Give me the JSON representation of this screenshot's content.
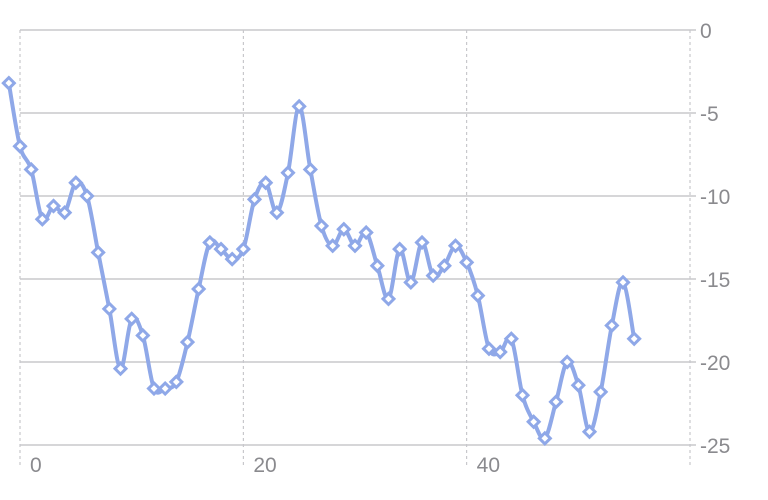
{
  "chart_data": {
    "type": "line",
    "title": "",
    "xlabel": "",
    "ylabel": "",
    "xlim": [
      0,
      60
    ],
    "ylim": [
      -25,
      0
    ],
    "x_ticks": [
      {
        "value": 0,
        "label": "0"
      },
      {
        "value": 20,
        "label": "20"
      },
      {
        "value": 40,
        "label": "40"
      }
    ],
    "y_ticks": [
      {
        "value": 0,
        "label": "0"
      },
      {
        "value": -5,
        "label": "-5"
      },
      {
        "value": -10,
        "label": "-10"
      },
      {
        "value": -15,
        "label": "-15"
      },
      {
        "value": -20,
        "label": "-20"
      },
      {
        "value": -25,
        "label": "-25"
      }
    ],
    "y_axis_position": "right",
    "grid": true,
    "colors": {
      "series": "#8fa8e8",
      "grid": "#c8c8cc",
      "tick_text": "#8a8a8e"
    },
    "series": [
      {
        "marker": "diamond",
        "x": [
          -1,
          0,
          1,
          2,
          3,
          4,
          5,
          6,
          7,
          8,
          9,
          10,
          11,
          12,
          13,
          14,
          15,
          16,
          17,
          18,
          19,
          20,
          21,
          22,
          23,
          24,
          25,
          26,
          27,
          28,
          29,
          30,
          31,
          32,
          33,
          34,
          35,
          36,
          37,
          38,
          39,
          40,
          41,
          42,
          43,
          44,
          45,
          46,
          47,
          48,
          49,
          50,
          51,
          52,
          53,
          54,
          55
        ],
        "values": [
          -3.2,
          -7.0,
          -8.4,
          -11.4,
          -10.6,
          -11.0,
          -9.2,
          -10.0,
          -13.4,
          -16.8,
          -20.4,
          -17.4,
          -18.4,
          -21.6,
          -21.6,
          -21.2,
          -18.8,
          -15.6,
          -12.8,
          -13.2,
          -13.8,
          -13.2,
          -10.2,
          -9.2,
          -11.0,
          -8.6,
          -4.6,
          -8.4,
          -11.8,
          -13.0,
          -12.0,
          -13.0,
          -12.2,
          -14.2,
          -16.2,
          -13.2,
          -15.2,
          -12.8,
          -14.8,
          -14.2,
          -13.0,
          -14.0,
          -16.0,
          -19.2,
          -19.4,
          -18.6,
          -22.0,
          -23.6,
          -24.6,
          -22.4,
          -20.0,
          -21.4,
          -24.2,
          -21.8,
          -17.8,
          -15.2,
          -18.6
        ]
      }
    ]
  }
}
